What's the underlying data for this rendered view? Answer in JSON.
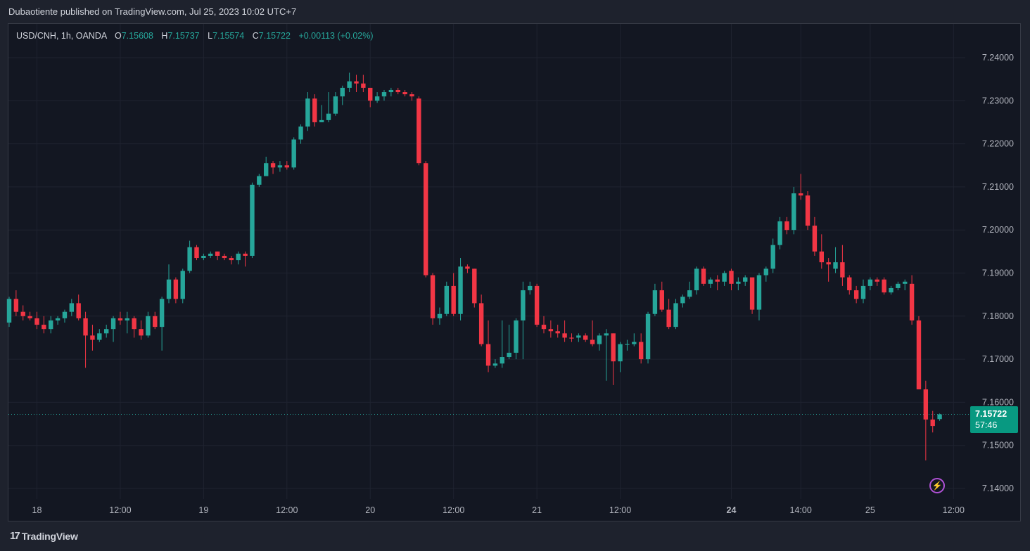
{
  "header": {
    "published": "Dubaotiente published on TradingView.com, Jul 25, 2023 10:02 UTC+7"
  },
  "legend": {
    "symbol": "USD/CNH, 1h, OANDA",
    "open_key": "O",
    "open": "7.15608",
    "high_key": "H",
    "high": "7.15737",
    "low_key": "L",
    "low": "7.15574",
    "close_key": "C",
    "close": "7.15722",
    "change": "+0.00113 (+0.02%)"
  },
  "price_tag": {
    "price": "7.15722",
    "countdown": "57:46"
  },
  "footer": {
    "brand": "TradingView",
    "logo": "17"
  },
  "colors": {
    "up": "#26a69a",
    "down": "#f23645",
    "grid": "#1f2330",
    "axis_text": "#b2b5be"
  },
  "chart_data": {
    "type": "candlestick",
    "ylim": [
      7.135,
      7.245
    ],
    "current_price": 7.15722,
    "y_ticks": [
      "7.24000",
      "7.23000",
      "7.22000",
      "7.21000",
      "7.20000",
      "7.19000",
      "7.18000",
      "7.17000",
      "7.16000",
      "7.15000",
      "7.14000"
    ],
    "x_ticks": [
      {
        "label": "18",
        "bar": 4,
        "bold": false
      },
      {
        "label": "12:00",
        "bar": 16,
        "bold": false
      },
      {
        "label": "19",
        "bar": 28,
        "bold": false
      },
      {
        "label": "12:00",
        "bar": 40,
        "bold": false
      },
      {
        "label": "20",
        "bar": 52,
        "bold": false
      },
      {
        "label": "12:00",
        "bar": 64,
        "bold": false
      },
      {
        "label": "21",
        "bar": 76,
        "bold": false
      },
      {
        "label": "12:00",
        "bar": 88,
        "bold": false
      },
      {
        "label": "24",
        "bar": 104,
        "bold": true
      },
      {
        "label": "14:00",
        "bar": 114,
        "bold": false
      },
      {
        "label": "25",
        "bar": 124,
        "bold": false
      },
      {
        "label": "12:00",
        "bar": 136,
        "bold": false
      }
    ],
    "candles": [
      [
        7.1785,
        7.1845,
        7.1775,
        7.184
      ],
      [
        7.184,
        7.186,
        7.18,
        7.181
      ],
      [
        7.181,
        7.1825,
        7.179,
        7.18
      ],
      [
        7.18,
        7.181,
        7.179,
        7.1795
      ],
      [
        7.1795,
        7.181,
        7.177,
        7.178
      ],
      [
        7.178,
        7.18,
        7.176,
        7.177
      ],
      [
        7.177,
        7.18,
        7.176,
        7.179
      ],
      [
        7.179,
        7.18,
        7.178,
        7.1795
      ],
      [
        7.1795,
        7.1815,
        7.1785,
        7.181
      ],
      [
        7.181,
        7.184,
        7.18,
        7.183
      ],
      [
        7.183,
        7.185,
        7.179,
        7.1795
      ],
      [
        7.1795,
        7.181,
        7.168,
        7.1755
      ],
      [
        7.1755,
        7.178,
        7.172,
        7.1745
      ],
      [
        7.1745,
        7.177,
        7.174,
        7.176
      ],
      [
        7.176,
        7.178,
        7.175,
        7.177
      ],
      [
        7.177,
        7.18,
        7.174,
        7.1795
      ],
      [
        7.1795,
        7.181,
        7.178,
        7.179
      ],
      [
        7.179,
        7.181,
        7.176,
        7.1795
      ],
      [
        7.1795,
        7.18,
        7.175,
        7.177
      ],
      [
        7.177,
        7.179,
        7.1745,
        7.1755
      ],
      [
        7.1755,
        7.181,
        7.175,
        7.18
      ],
      [
        7.18,
        7.181,
        7.177,
        7.1775
      ],
      [
        7.1775,
        7.1845,
        7.172,
        7.184
      ],
      [
        7.184,
        7.192,
        7.183,
        7.1885
      ],
      [
        7.1885,
        7.189,
        7.183,
        7.184
      ],
      [
        7.184,
        7.191,
        7.183,
        7.1905
      ],
      [
        7.1905,
        7.1975,
        7.19,
        7.196
      ],
      [
        7.196,
        7.1965,
        7.193,
        7.1935
      ],
      [
        7.1935,
        7.1945,
        7.193,
        7.194
      ],
      [
        7.194,
        7.195,
        7.1935,
        7.1945
      ],
      [
        7.195,
        7.195,
        7.193,
        7.194
      ],
      [
        7.194,
        7.1945,
        7.193,
        7.1935
      ],
      [
        7.1935,
        7.194,
        7.192,
        7.193
      ],
      [
        7.193,
        7.195,
        7.192,
        7.1945
      ],
      [
        7.1945,
        7.195,
        7.1915,
        7.194
      ],
      [
        7.194,
        7.211,
        7.1935,
        7.2105
      ],
      [
        7.2105,
        7.213,
        7.21,
        7.2125
      ],
      [
        7.2125,
        7.217,
        7.213,
        7.2155
      ],
      [
        7.2155,
        7.216,
        7.213,
        7.2145
      ],
      [
        7.2145,
        7.216,
        7.2135,
        7.215
      ],
      [
        7.215,
        7.216,
        7.214,
        7.2145
      ],
      [
        7.2145,
        7.2215,
        7.214,
        7.221
      ],
      [
        7.221,
        7.2245,
        7.22,
        7.224
      ],
      [
        7.224,
        7.232,
        7.223,
        7.2305
      ],
      [
        7.2305,
        7.2315,
        7.224,
        7.225
      ],
      [
        7.225,
        7.229,
        7.225,
        7.2255
      ],
      [
        7.2255,
        7.232,
        7.225,
        7.227
      ],
      [
        7.227,
        7.232,
        7.2265,
        7.231
      ],
      [
        7.231,
        7.2335,
        7.229,
        7.233
      ],
      [
        7.233,
        7.2365,
        7.232,
        7.2345
      ],
      [
        7.2345,
        7.236,
        7.232,
        7.234
      ],
      [
        7.234,
        7.236,
        7.232,
        7.233
      ],
      [
        7.233,
        7.2325,
        7.2285,
        7.23
      ],
      [
        7.23,
        7.232,
        7.2295,
        7.231
      ],
      [
        7.231,
        7.2325,
        7.23,
        7.232
      ],
      [
        7.232,
        7.233,
        7.231,
        7.2325
      ],
      [
        7.2325,
        7.233,
        7.2315,
        7.232
      ],
      [
        7.232,
        7.2325,
        7.231,
        7.2315
      ],
      [
        7.2315,
        7.232,
        7.23,
        7.231
      ],
      [
        7.2305,
        7.231,
        7.215,
        7.2155
      ],
      [
        7.2155,
        7.216,
        7.189,
        7.1895
      ],
      [
        7.1895,
        7.19,
        7.178,
        7.1795
      ],
      [
        7.1795,
        7.182,
        7.178,
        7.1805
      ],
      [
        7.1805,
        7.188,
        7.18,
        7.187
      ],
      [
        7.187,
        7.19,
        7.18,
        7.1805
      ],
      [
        7.1805,
        7.1935,
        7.179,
        7.1915
      ],
      [
        7.1915,
        7.192,
        7.19,
        7.191
      ],
      [
        7.191,
        7.191,
        7.182,
        7.183
      ],
      [
        7.183,
        7.185,
        7.173,
        7.1735
      ],
      [
        7.1735,
        7.179,
        7.167,
        7.1685
      ],
      [
        7.1685,
        7.17,
        7.168,
        7.169
      ],
      [
        7.169,
        7.179,
        7.168,
        7.1705
      ],
      [
        7.1705,
        7.178,
        7.17,
        7.1715
      ],
      [
        7.1715,
        7.1795,
        7.17,
        7.179
      ],
      [
        7.179,
        7.188,
        7.17,
        7.186
      ],
      [
        7.186,
        7.188,
        7.185,
        7.187
      ],
      [
        7.187,
        7.1875,
        7.1775,
        7.178
      ],
      [
        7.178,
        7.18,
        7.176,
        7.177
      ],
      [
        7.177,
        7.179,
        7.175,
        7.1765
      ],
      [
        7.1765,
        7.178,
        7.175,
        7.176
      ],
      [
        7.176,
        7.179,
        7.174,
        7.175
      ],
      [
        7.175,
        7.176,
        7.174,
        7.1748
      ],
      [
        7.175,
        7.176,
        7.174,
        7.1755
      ],
      [
        7.1755,
        7.176,
        7.174,
        7.1745
      ],
      [
        7.1745,
        7.179,
        7.173,
        7.1735
      ],
      [
        7.1735,
        7.176,
        7.172,
        7.1755
      ],
      [
        7.1755,
        7.177,
        7.165,
        7.176
      ],
      [
        7.176,
        7.176,
        7.164,
        7.1695
      ],
      [
        7.1695,
        7.174,
        7.167,
        7.1735
      ],
      [
        7.1735,
        7.1745,
        7.172,
        7.1735
      ],
      [
        7.1735,
        7.176,
        7.173,
        7.174
      ],
      [
        7.174,
        7.176,
        7.169,
        7.17
      ],
      [
        7.17,
        7.181,
        7.169,
        7.1805
      ],
      [
        7.1805,
        7.1875,
        7.18,
        7.186
      ],
      [
        7.186,
        7.188,
        7.181,
        7.1815
      ],
      [
        7.1815,
        7.184,
        7.177,
        7.1775
      ],
      [
        7.1775,
        7.184,
        7.177,
        7.183
      ],
      [
        7.183,
        7.185,
        7.182,
        7.1845
      ],
      [
        7.1845,
        7.188,
        7.184,
        7.186
      ],
      [
        7.186,
        7.1915,
        7.185,
        7.191
      ],
      [
        7.191,
        7.1915,
        7.187,
        7.1875
      ],
      [
        7.1875,
        7.189,
        7.1865,
        7.1885
      ],
      [
        7.1885,
        7.1895,
        7.186,
        7.188
      ],
      [
        7.188,
        7.1905,
        7.187,
        7.19
      ],
      [
        7.1905,
        7.191,
        7.186,
        7.1875
      ],
      [
        7.1875,
        7.189,
        7.186,
        7.188
      ],
      [
        7.188,
        7.1895,
        7.187,
        7.189
      ],
      [
        7.189,
        7.1885,
        7.1805,
        7.1815
      ],
      [
        7.1815,
        7.19,
        7.179,
        7.1895
      ],
      [
        7.1895,
        7.1915,
        7.188,
        7.191
      ],
      [
        7.191,
        7.198,
        7.19,
        7.1965
      ],
      [
        7.1965,
        7.203,
        7.1955,
        7.202
      ],
      [
        7.202,
        7.203,
        7.199,
        7.2
      ],
      [
        7.2,
        7.21,
        7.199,
        7.2085
      ],
      [
        7.2085,
        7.213,
        7.207,
        7.208
      ],
      [
        7.208,
        7.209,
        7.2,
        7.201
      ],
      [
        7.201,
        7.203,
        7.194,
        7.195
      ],
      [
        7.195,
        7.199,
        7.191,
        7.1925
      ],
      [
        7.1925,
        7.1935,
        7.188,
        7.192
      ],
      [
        7.191,
        7.196,
        7.19,
        7.1925
      ],
      [
        7.1925,
        7.1965,
        7.187,
        7.189
      ],
      [
        7.189,
        7.1895,
        7.185,
        7.186
      ],
      [
        7.186,
        7.187,
        7.183,
        7.184
      ],
      [
        7.184,
        7.1885,
        7.183,
        7.187
      ],
      [
        7.187,
        7.189,
        7.186,
        7.1885
      ],
      [
        7.1885,
        7.189,
        7.187,
        7.188
      ],
      [
        7.1885,
        7.189,
        7.185,
        7.1855
      ],
      [
        7.1855,
        7.187,
        7.185,
        7.1865
      ],
      [
        7.1865,
        7.188,
        7.186,
        7.1875
      ],
      [
        7.1875,
        7.1885,
        7.186,
        7.188
      ],
      [
        7.1875,
        7.1895,
        7.178,
        7.179
      ],
      [
        7.179,
        7.18,
        7.163,
        7.163
      ],
      [
        7.163,
        7.165,
        7.1465,
        7.156
      ],
      [
        7.156,
        7.158,
        7.153,
        7.1545
      ],
      [
        7.1561,
        7.1574,
        7.1557,
        7.1572
      ]
    ]
  }
}
